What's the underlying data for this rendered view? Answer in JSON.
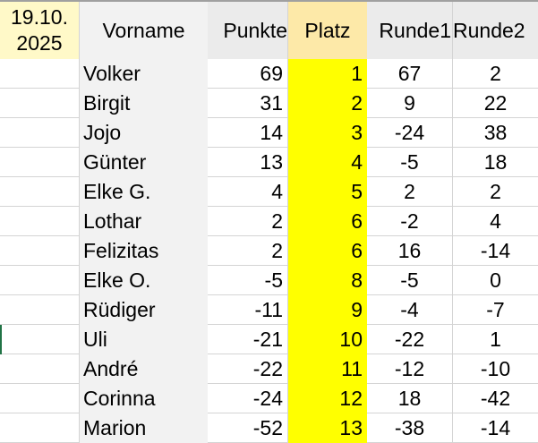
{
  "header": {
    "date_line1": "19.10.",
    "date_line2": "2025",
    "columns": [
      "Vorname",
      "Punkte",
      "Platz",
      "Runde1",
      "Runde2"
    ]
  },
  "colors": {
    "platz_fill": "#ffff00",
    "platz_header": "#fde9a8",
    "date_cell": "#fff9c8"
  },
  "rows": [
    {
      "name": "Volker",
      "punkte": "69",
      "platz": "1",
      "r1": "67",
      "r2": "2"
    },
    {
      "name": "Birgit",
      "punkte": "31",
      "platz": "2",
      "r1": "9",
      "r2": "22"
    },
    {
      "name": "Jojo",
      "punkte": "14",
      "platz": "3",
      "r1": "-24",
      "r2": "38"
    },
    {
      "name": "Günter",
      "punkte": "13",
      "platz": "4",
      "r1": "-5",
      "r2": "18"
    },
    {
      "name": "Elke G.",
      "punkte": "4",
      "platz": "5",
      "r1": "2",
      "r2": "2"
    },
    {
      "name": "Lothar",
      "punkte": "2",
      "platz": "6",
      "r1": "-2",
      "r2": "4"
    },
    {
      "name": "Felizitas",
      "punkte": "2",
      "platz": "6",
      "r1": "16",
      "r2": "-14"
    },
    {
      "name": "Elke O.",
      "punkte": "-5",
      "platz": "8",
      "r1": "-5",
      "r2": "0"
    },
    {
      "name": "Rüdiger",
      "punkte": "-11",
      "platz": "9",
      "r1": "-4",
      "r2": "-7"
    },
    {
      "name": "Uli",
      "punkte": "-21",
      "platz": "10",
      "r1": "-22",
      "r2": "1"
    },
    {
      "name": "André",
      "punkte": "-22",
      "platz": "11",
      "r1": "-12",
      "r2": "-10"
    },
    {
      "name": "Corinna",
      "punkte": "-24",
      "platz": "12",
      "r1": "18",
      "r2": "-42"
    },
    {
      "name": "Marion",
      "punkte": "-52",
      "platz": "13",
      "r1": "-38",
      "r2": "-14"
    }
  ]
}
